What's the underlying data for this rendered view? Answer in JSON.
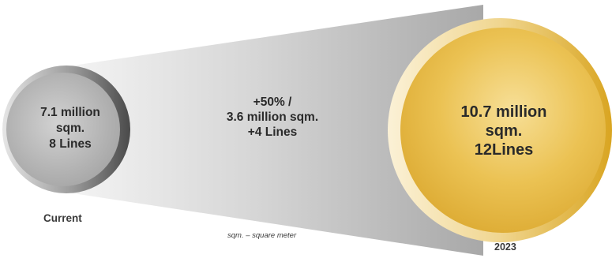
{
  "current": {
    "line1": "7.1 million",
    "line2": "sqm.",
    "line3": "8 Lines",
    "label": "Current"
  },
  "growth": {
    "line1": "+50% /",
    "line2": "3.6 million sqm.",
    "line3": "+4 Lines"
  },
  "future": {
    "line1": "10.7 million",
    "line2": "sqm.",
    "line3": "12Lines",
    "label": "2023"
  },
  "footnote": "sqm. – square meter",
  "colors": {
    "current_circle": "#a9a9a9",
    "current_rim": "#6e6e6e",
    "funnel": "#c8c8c8",
    "future_circle": "#e3b340",
    "future_rim": "#f3e2b8"
  }
}
